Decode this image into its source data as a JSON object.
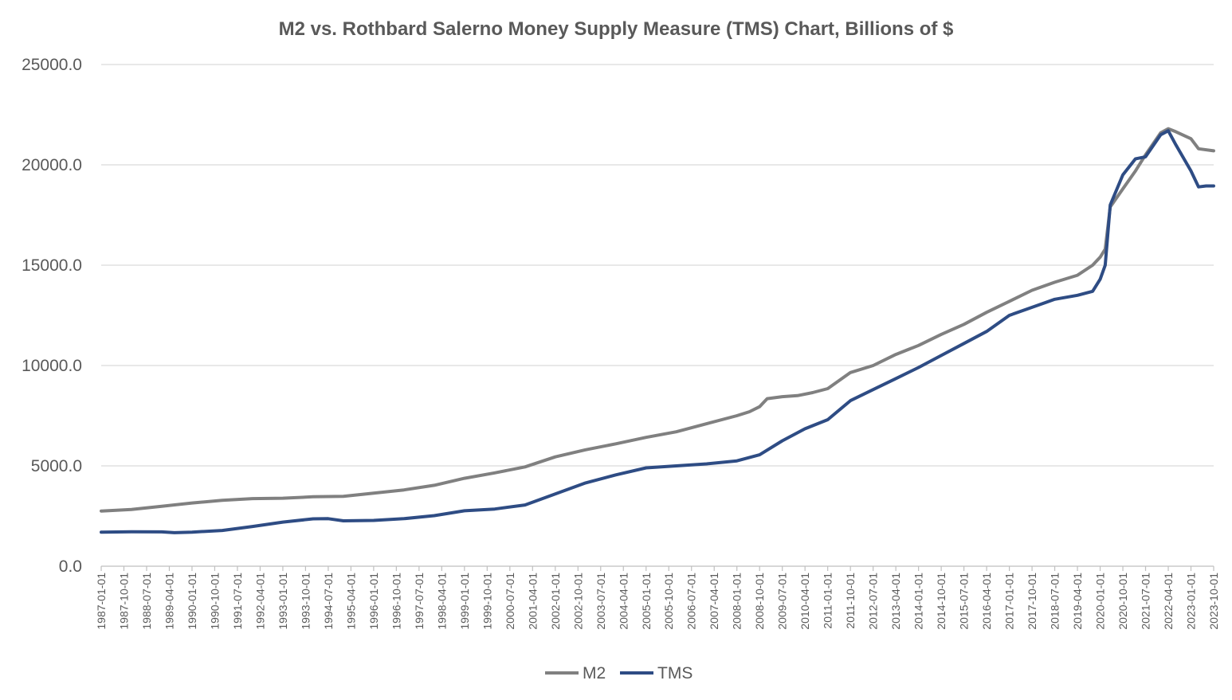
{
  "chart_data": {
    "type": "line",
    "title": "M2 vs. Rothbard Salerno Money Supply Measure (TMS) Chart, Billions of $",
    "xlabel": "",
    "ylabel": "",
    "ylim": [
      0,
      25000
    ],
    "yticks": [
      "0.0",
      "5000.0",
      "10000.0",
      "15000.0",
      "20000.0",
      "25000.0"
    ],
    "x_tick_labels": [
      "1987-01-01",
      "1987-10-01",
      "1988-07-01",
      "1989-04-01",
      "1990-01-01",
      "1990-10-01",
      "1991-07-01",
      "1992-04-01",
      "1993-01-01",
      "1993-10-01",
      "1994-07-01",
      "1995-04-01",
      "1996-01-01",
      "1996-10-01",
      "1997-07-01",
      "1998-04-01",
      "1999-01-01",
      "1999-10-01",
      "2000-07-01",
      "2001-04-01",
      "2002-01-01",
      "2002-10-01",
      "2003-07-01",
      "2004-04-01",
      "2005-01-01",
      "2005-10-01",
      "2006-07-01",
      "2007-04-01",
      "2008-01-01",
      "2008-10-01",
      "2009-07-01",
      "2010-04-01",
      "2011-01-01",
      "2011-10-01",
      "2012-07-01",
      "2013-04-01",
      "2014-01-01",
      "2014-10-01",
      "2015-07-01",
      "2016-04-01",
      "2017-01-01",
      "2017-10-01",
      "2018-07-01",
      "2019-04-01",
      "2020-01-01",
      "2020-10-01",
      "2021-07-01",
      "2022-04-01",
      "2023-01-01",
      "2023-10-01"
    ],
    "grid": true,
    "legend_position": "bottom",
    "series": [
      {
        "name": "M2",
        "color": "#808080",
        "points": [
          [
            "1987-01-01",
            2750
          ],
          [
            "1988-01-01",
            2830
          ],
          [
            "1989-01-01",
            2990
          ],
          [
            "1990-01-01",
            3150
          ],
          [
            "1991-01-01",
            3280
          ],
          [
            "1992-01-01",
            3370
          ],
          [
            "1993-01-01",
            3390
          ],
          [
            "1994-01-01",
            3460
          ],
          [
            "1995-01-01",
            3480
          ],
          [
            "1996-01-01",
            3640
          ],
          [
            "1997-01-01",
            3800
          ],
          [
            "1998-01-01",
            4030
          ],
          [
            "1999-01-01",
            4380
          ],
          [
            "2000-01-01",
            4650
          ],
          [
            "2001-01-01",
            4950
          ],
          [
            "2002-01-01",
            5450
          ],
          [
            "2003-01-01",
            5800
          ],
          [
            "2004-01-01",
            6100
          ],
          [
            "2005-01-01",
            6420
          ],
          [
            "2006-01-01",
            6700
          ],
          [
            "2007-01-01",
            7100
          ],
          [
            "2008-01-01",
            7500
          ],
          [
            "2008-06-01",
            7700
          ],
          [
            "2008-10-01",
            7950
          ],
          [
            "2009-01-01",
            8350
          ],
          [
            "2009-07-01",
            8450
          ],
          [
            "2010-01-01",
            8500
          ],
          [
            "2010-07-01",
            8650
          ],
          [
            "2011-01-01",
            8850
          ],
          [
            "2011-10-01",
            9650
          ],
          [
            "2012-07-01",
            10000
          ],
          [
            "2013-04-01",
            10550
          ],
          [
            "2014-01-01",
            11000
          ],
          [
            "2014-10-01",
            11550
          ],
          [
            "2015-07-01",
            12050
          ],
          [
            "2016-04-01",
            12650
          ],
          [
            "2017-01-01",
            13200
          ],
          [
            "2017-10-01",
            13750
          ],
          [
            "2018-07-01",
            14150
          ],
          [
            "2019-04-01",
            14500
          ],
          [
            "2019-10-01",
            15000
          ],
          [
            "2020-01-01",
            15400
          ],
          [
            "2020-03-01",
            15800
          ],
          [
            "2020-05-01",
            17900
          ],
          [
            "2020-10-01",
            18800
          ],
          [
            "2021-03-01",
            19700
          ],
          [
            "2021-07-01",
            20500
          ],
          [
            "2022-01-01",
            21600
          ],
          [
            "2022-04-01",
            21800
          ],
          [
            "2022-07-01",
            21650
          ],
          [
            "2023-01-01",
            21300
          ],
          [
            "2023-04-01",
            20800
          ],
          [
            "2023-10-01",
            20700
          ]
        ]
      },
      {
        "name": "TMS",
        "color": "#2e4c84",
        "points": [
          [
            "1987-01-01",
            1700
          ],
          [
            "1988-01-01",
            1720
          ],
          [
            "1989-01-01",
            1710
          ],
          [
            "1989-06-01",
            1670
          ],
          [
            "1990-01-01",
            1700
          ],
          [
            "1991-01-01",
            1780
          ],
          [
            "1992-01-01",
            1980
          ],
          [
            "1993-01-01",
            2200
          ],
          [
            "1994-01-01",
            2360
          ],
          [
            "1994-07-01",
            2370
          ],
          [
            "1995-01-01",
            2260
          ],
          [
            "1996-01-01",
            2280
          ],
          [
            "1997-01-01",
            2370
          ],
          [
            "1998-01-01",
            2520
          ],
          [
            "1999-01-01",
            2760
          ],
          [
            "2000-01-01",
            2850
          ],
          [
            "2001-01-01",
            3050
          ],
          [
            "2002-01-01",
            3600
          ],
          [
            "2003-01-01",
            4150
          ],
          [
            "2004-01-01",
            4550
          ],
          [
            "2005-01-01",
            4900
          ],
          [
            "2006-01-01",
            5000
          ],
          [
            "2007-01-01",
            5100
          ],
          [
            "2008-01-01",
            5250
          ],
          [
            "2008-10-01",
            5550
          ],
          [
            "2009-07-01",
            6250
          ],
          [
            "2010-04-01",
            6850
          ],
          [
            "2011-01-01",
            7300
          ],
          [
            "2011-10-01",
            8250
          ],
          [
            "2012-07-01",
            8800
          ],
          [
            "2013-04-01",
            9350
          ],
          [
            "2014-01-01",
            9900
          ],
          [
            "2014-10-01",
            10500
          ],
          [
            "2015-07-01",
            11100
          ],
          [
            "2016-04-01",
            11700
          ],
          [
            "2017-01-01",
            12500
          ],
          [
            "2017-10-01",
            12900
          ],
          [
            "2018-07-01",
            13300
          ],
          [
            "2019-04-01",
            13500
          ],
          [
            "2019-10-01",
            13700
          ],
          [
            "2020-01-01",
            14300
          ],
          [
            "2020-03-01",
            15000
          ],
          [
            "2020-05-01",
            18000
          ],
          [
            "2020-10-01",
            19500
          ],
          [
            "2021-03-01",
            20300
          ],
          [
            "2021-07-01",
            20400
          ],
          [
            "2022-01-01",
            21500
          ],
          [
            "2022-04-01",
            21700
          ],
          [
            "2022-07-01",
            21000
          ],
          [
            "2023-01-01",
            19700
          ],
          [
            "2023-04-01",
            18900
          ],
          [
            "2023-07-01",
            18950
          ],
          [
            "2023-10-01",
            18950
          ]
        ]
      }
    ]
  }
}
